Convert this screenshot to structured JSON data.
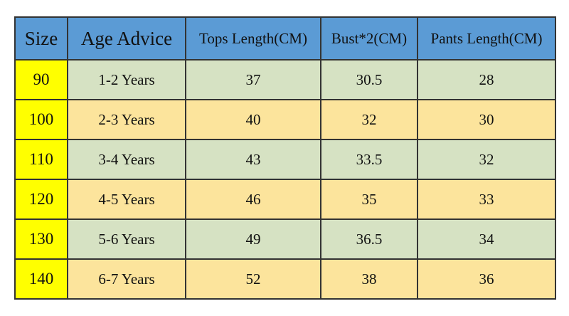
{
  "table": {
    "columns": [
      {
        "key": "size",
        "label": "Size"
      },
      {
        "key": "age",
        "label": "Age Advice"
      },
      {
        "key": "tops",
        "label": "Tops Length(CM)"
      },
      {
        "key": "bust",
        "label": "Bust*2(CM)"
      },
      {
        "key": "pants",
        "label": "Pants Length(CM)"
      }
    ],
    "rows": [
      {
        "size": "90",
        "age": "1-2 Years",
        "tops": "37",
        "bust": "30.5",
        "pants": "28"
      },
      {
        "size": "100",
        "age": "2-3 Years",
        "tops": "40",
        "bust": "32",
        "pants": "30"
      },
      {
        "size": "110",
        "age": "3-4 Years",
        "tops": "43",
        "bust": "33.5",
        "pants": "32"
      },
      {
        "size": "120",
        "age": "4-5 Years",
        "tops": "46",
        "bust": "35",
        "pants": "33"
      },
      {
        "size": "130",
        "age": "5-6 Years",
        "tops": "49",
        "bust": "36.5",
        "pants": "34"
      },
      {
        "size": "140",
        "age": "6-7 Years",
        "tops": "52",
        "bust": "38",
        "pants": "36"
      }
    ]
  },
  "colors": {
    "page_bg": "#FFFFFF",
    "header_bg": "#5B9BD5",
    "size_col_bg": "#FFFF00",
    "row_green": "#D6E2C3",
    "row_tan": "#FCE49C",
    "border": "#333333",
    "text": "#111111"
  }
}
